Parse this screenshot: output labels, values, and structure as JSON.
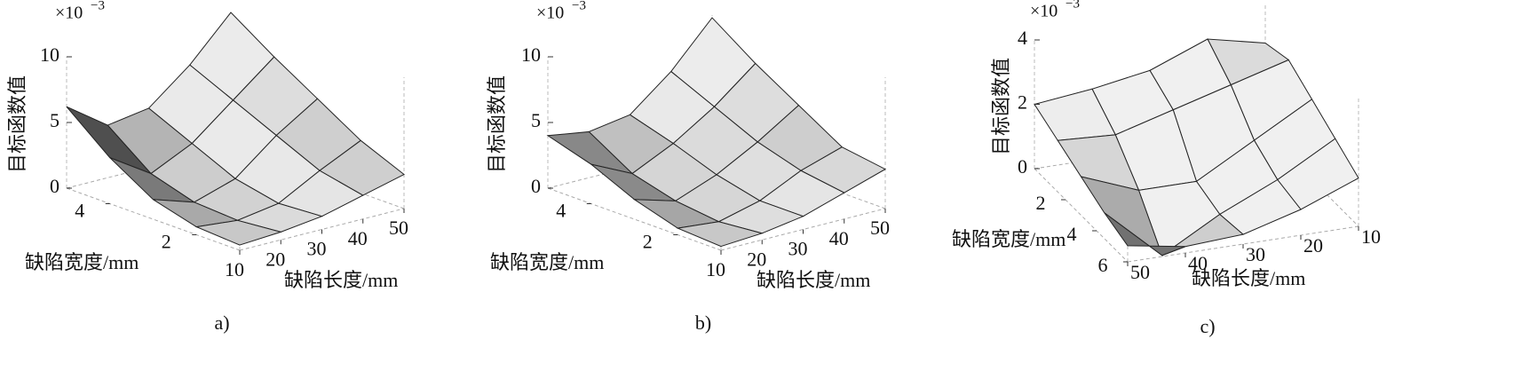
{
  "chart_data": [
    {
      "type": "surface",
      "caption": "a)",
      "zlabel": "目标函数值",
      "xlabel": "缺陷长度/mm",
      "ylabel": "缺陷宽度/mm",
      "multiplier": "×10",
      "exponent": "−3",
      "x": [
        10,
        20,
        30,
        40,
        50
      ],
      "y": [
        1,
        2,
        3,
        4,
        5
      ],
      "z": [
        [
          0.4,
          0.6,
          1.0,
          1.8,
          2.6
        ],
        [
          0.6,
          0.3,
          0.8,
          2.5,
          4
        ],
        [
          1.5,
          0.5,
          1.5,
          4,
          6
        ],
        [
          3.5,
          1.5,
          3,
          5.5,
          8
        ],
        [
          6.2,
          4,
          4.5,
          7,
          10.2
        ]
      ],
      "xlim": [
        10,
        50
      ],
      "ylim": [
        1,
        5
      ],
      "zlim": [
        0,
        10
      ],
      "xticks": [
        10,
        20,
        30,
        40,
        50
      ],
      "yticks": [
        2,
        4
      ],
      "zticks": [
        0,
        5,
        10
      ]
    },
    {
      "type": "surface",
      "caption": "b)",
      "zlabel": "目标函数值",
      "xlabel": "缺陷长度/mm",
      "ylabel": "缺陷宽度/mm",
      "multiplier": "×10",
      "exponent": "−3",
      "x": [
        10,
        20,
        30,
        40,
        50
      ],
      "y": [
        1,
        2,
        3,
        4,
        5
      ],
      "z": [
        [
          0.3,
          0.5,
          1,
          2,
          3
        ],
        [
          0.5,
          0.2,
          1,
          2.5,
          3.5
        ],
        [
          1.5,
          0.6,
          1.8,
          3.5,
          5.5
        ],
        [
          3,
          1.5,
          3,
          5,
          7.5
        ],
        [
          4,
          3.5,
          4,
          6.5,
          9.8
        ]
      ],
      "xlim": [
        10,
        50
      ],
      "ylim": [
        1,
        5
      ],
      "zlim": [
        0,
        10
      ],
      "xticks": [
        10,
        20,
        30,
        40,
        50
      ],
      "yticks": [
        2,
        4
      ],
      "zticks": [
        0,
        5,
        10
      ]
    },
    {
      "type": "surface",
      "caption": "c)",
      "zlabel": "目标函数值",
      "xlabel": "缺陷长度/mm",
      "ylabel": "缺陷宽度/mm",
      "multiplier": "×10",
      "exponent": "−3",
      "x": [
        10,
        20,
        30,
        40,
        50
      ],
      "y": [
        0,
        1.5,
        3,
        4.5,
        6
      ],
      "z": [
        [
          2.8,
          3.2,
          2.5,
          2.2,
          2.0
        ],
        [
          3,
          2.5,
          2,
          1.5,
          1.6
        ],
        [
          2.5,
          1.5,
          0.5,
          0.5,
          1.2
        ],
        [
          2,
          1,
          0.2,
          -0.8,
          0.8
        ],
        [
          1.5,
          0.8,
          0.3,
          0.2,
          0.5
        ]
      ],
      "xlim": [
        10,
        50
      ],
      "ylim": [
        0,
        6
      ],
      "zlim": [
        0,
        4
      ],
      "xticks": [
        10,
        20,
        30,
        40,
        50
      ],
      "yticks": [
        2,
        4,
        6
      ],
      "zticks": [
        0,
        2,
        4
      ]
    }
  ]
}
